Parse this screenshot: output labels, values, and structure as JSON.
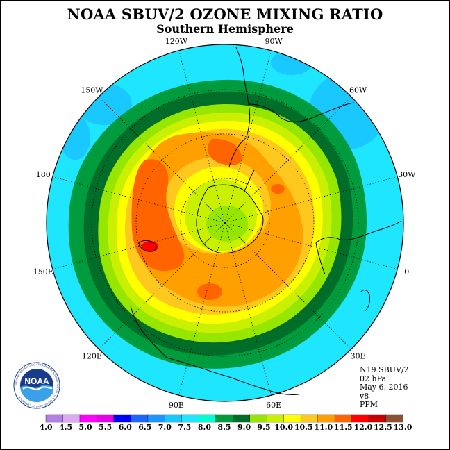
{
  "title": "NOAA SBUV/2 OZONE MIXING RATIO",
  "subtitle": "Southern Hemisphere",
  "longitude_labels": [
    {
      "text": "90W",
      "lon": -90
    },
    {
      "text": "60W",
      "lon": -60
    },
    {
      "text": "30W",
      "lon": -30
    },
    {
      "text": "0",
      "lon": 0
    },
    {
      "text": "30E",
      "lon": 30
    },
    {
      "text": "60E",
      "lon": 60
    },
    {
      "text": "90E",
      "lon": 90
    },
    {
      "text": "120E",
      "lon": 120
    },
    {
      "text": "150E",
      "lon": 150
    },
    {
      "text": "180",
      "lon": 180
    },
    {
      "text": "150W",
      "lon": -150
    },
    {
      "text": "120W",
      "lon": -120
    }
  ],
  "info": {
    "satellite": "N19 SBUV/2",
    "pressure": "02 hPa",
    "date": "May 6, 2016",
    "version": "v8",
    "units": "PPM"
  },
  "logo": {
    "text": "NOAA",
    "ring_text": "NATIONAL OCEANIC AND ATMOSPHERIC ADMINISTRATION · U.S. DEPARTMENT OF COMMERCE"
  },
  "colorbar": {
    "labels": [
      "4.0",
      "4.5",
      "5.0",
      "5.5",
      "6.0",
      "6.5",
      "7.0",
      "7.5",
      "8.0",
      "8.5",
      "9.0",
      "9.5",
      "10.0",
      "10.5",
      "11.0",
      "11.5",
      "12.0",
      "12.5",
      "13.0"
    ],
    "colors": [
      "#b27fe6",
      "#e0a8f0",
      "#ff00ff",
      "#e600e6",
      "#0000ff",
      "#1e64ff",
      "#1e96ff",
      "#19c8ff",
      "#1ee6ff",
      "#00ffd2",
      "#009b3c",
      "#006e28",
      "#96e600",
      "#c8f000",
      "#ffff00",
      "#ffc81e",
      "#ffa000",
      "#ff6400",
      "#ff0000",
      "#c80000",
      "#8c5032"
    ]
  },
  "map_colors": {
    "outer": "#1ee6ff",
    "patch_blue": "#19c8ff",
    "green1": "#009b3c",
    "green2": "#006e28",
    "yellowgreen": "#96e600",
    "lightyellowgreen": "#c8f000",
    "yellow": "#ffff00",
    "gold": "#ffc81e",
    "orange": "#ffa000",
    "darkorange": "#ff6400",
    "red": "#ff0000"
  }
}
